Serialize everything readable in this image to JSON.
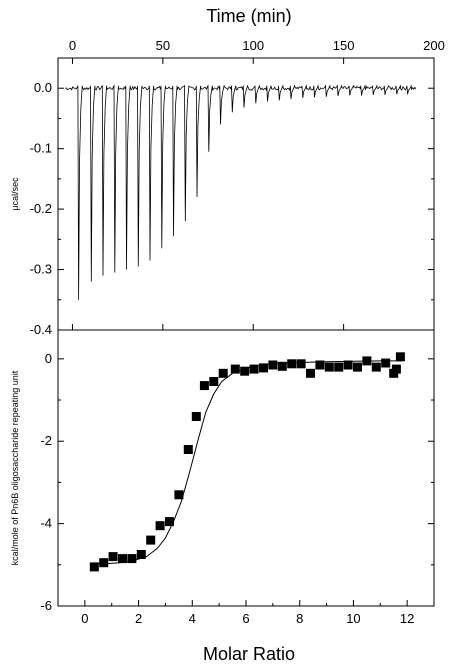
{
  "chart_data": [
    {
      "type": "line",
      "xlabel": "Time (min)",
      "ylabel": "µcal/sec",
      "xlim": [
        -8,
        200
      ],
      "ylim": [
        -0.4,
        0.05
      ],
      "xticks": [
        0,
        50,
        100,
        150,
        200
      ],
      "yticks": [
        0.0,
        -0.1,
        -0.2,
        -0.3,
        -0.4
      ],
      "ytick_labels": [
        "0.0",
        "-0.1",
        "-0.2",
        "-0.3",
        "-0.4"
      ],
      "grid": false,
      "baseline": 0.0,
      "injection_times": [
        3,
        10,
        16.5,
        23,
        29.5,
        36,
        42.5,
        49,
        55.5,
        62,
        68.5,
        75,
        81.5,
        88,
        94.5,
        101,
        107.5,
        114,
        120.5,
        127,
        133.5,
        140,
        146.5,
        153,
        159.5,
        166,
        172.5,
        179,
        185
      ],
      "peak_values": [
        -0.35,
        -0.32,
        -0.31,
        -0.305,
        -0.3,
        -0.295,
        -0.285,
        -0.265,
        -0.245,
        -0.22,
        -0.18,
        -0.105,
        -0.06,
        -0.04,
        -0.032,
        -0.025,
        -0.022,
        -0.02,
        -0.018,
        -0.016,
        -0.015,
        -0.014,
        -0.013,
        -0.012,
        -0.012,
        -0.011,
        -0.011,
        -0.01,
        -0.01
      ]
    },
    {
      "type": "scatter",
      "xlabel": "Molar Ratio",
      "ylabel": "kcal/mole of Pn6B oligosaccharide repeating unit",
      "xlim": [
        -1,
        13
      ],
      "ylim": [
        -6,
        0.7
      ],
      "xticks": [
        0,
        2,
        4,
        6,
        8,
        10,
        12
      ],
      "yticks": [
        0,
        -2,
        -4,
        -6
      ],
      "grid": false,
      "series": [
        {
          "x": [
            0.35,
            0.7,
            1.05,
            1.4,
            1.75,
            2.1,
            2.45,
            2.8,
            3.15,
            3.5,
            3.85,
            4.15,
            4.45,
            4.8,
            5.15,
            5.6,
            5.95,
            6.3,
            6.65,
            7.0,
            7.35,
            7.7,
            8.05,
            8.4,
            8.75,
            9.1,
            9.45,
            9.8,
            10.15,
            10.5,
            10.85,
            11.2,
            11.5,
            11.6,
            11.75
          ],
          "y": [
            -5.05,
            -4.95,
            -4.8,
            -4.85,
            -4.85,
            -4.75,
            -4.4,
            -4.05,
            -3.95,
            -3.3,
            -2.2,
            -1.4,
            -0.65,
            -0.55,
            -0.35,
            -0.25,
            -0.3,
            -0.25,
            -0.22,
            -0.15,
            -0.18,
            -0.12,
            -0.12,
            -0.35,
            -0.15,
            -0.2,
            -0.2,
            -0.15,
            -0.2,
            -0.05,
            -0.2,
            -0.1,
            -0.35,
            -0.25,
            0.05
          ]
        }
      ],
      "fit_curve": {
        "x": [
          0.3,
          0.8,
          1.3,
          1.8,
          2.3,
          2.7,
          3.0,
          3.3,
          3.6,
          3.9,
          4.2,
          4.5,
          4.8,
          5.1,
          5.5,
          6.0,
          6.5,
          7.0,
          8.0,
          9.0,
          10.0,
          11.0,
          11.8
        ],
        "y": [
          -4.98,
          -4.97,
          -4.95,
          -4.9,
          -4.8,
          -4.6,
          -4.35,
          -3.95,
          -3.45,
          -2.75,
          -2.0,
          -1.3,
          -0.85,
          -0.55,
          -0.35,
          -0.22,
          -0.16,
          -0.12,
          -0.09,
          -0.07,
          -0.06,
          -0.05,
          -0.05
        ]
      }
    }
  ]
}
